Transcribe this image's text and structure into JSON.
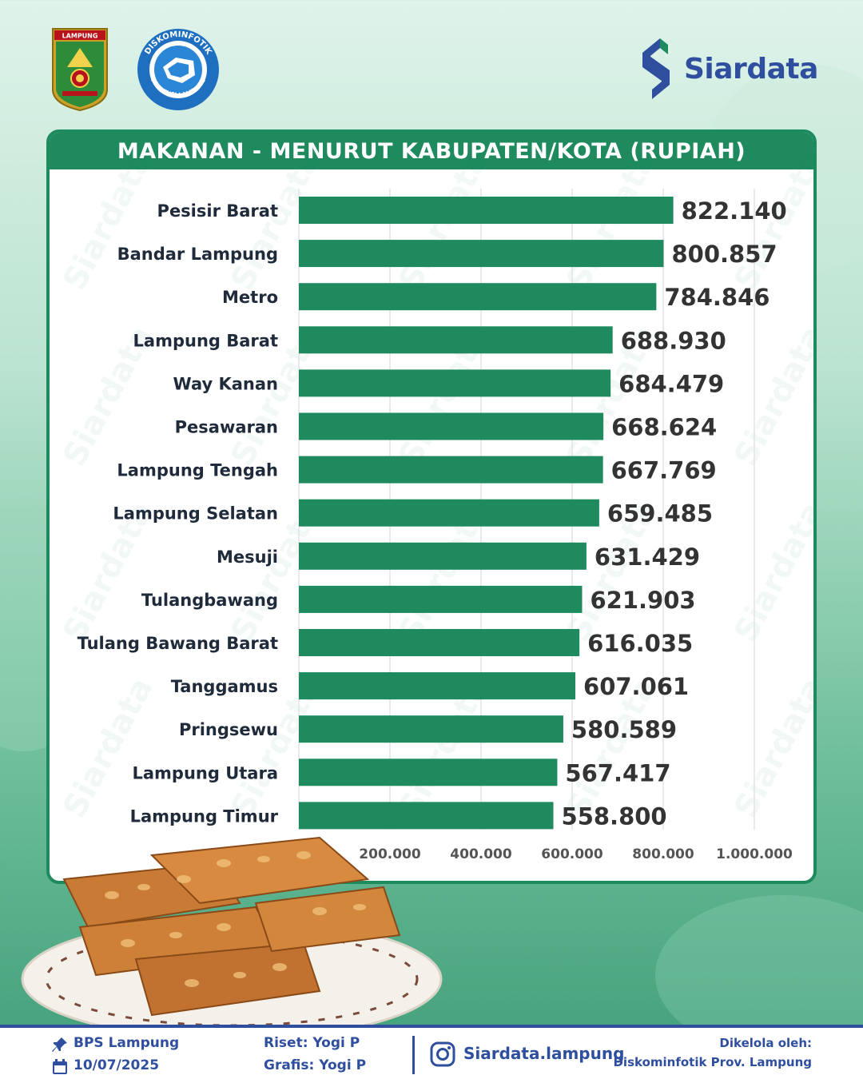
{
  "title": "MAKANAN - MENURUT KABUPATEN/KOTA (RUPIAH)",
  "brand": {
    "name": "Siardata"
  },
  "logos": {
    "lampung": "LAMPUNG",
    "diskominfotik_top": "DISKOMINFOTIK",
    "diskominfotik_bottom": "PROVINSI LAMPUNG",
    "watermark": "Siardata"
  },
  "chart_data": {
    "type": "bar",
    "orientation": "horizontal",
    "title": "MAKANAN - MENURUT KABUPATEN/KOTA (RUPIAH)",
    "categories": [
      "Pesisir Barat",
      "Bandar Lampung",
      "Metro",
      "Lampung Barat",
      "Way Kanan",
      "Pesawaran",
      "Lampung Tengah",
      "Lampung Selatan",
      "Mesuji",
      "Tulangbawang",
      "Tulang Bawang Barat",
      "Tanggamus",
      "Pringsewu",
      "Lampung Utara",
      "Lampung Timur"
    ],
    "values": [
      822140,
      800857,
      784846,
      688930,
      684479,
      668624,
      667769,
      659485,
      631429,
      621903,
      616035,
      607061,
      580589,
      567417,
      558800
    ],
    "value_labels": [
      "822.140",
      "800.857",
      "784.846",
      "688.930",
      "684.479",
      "668.624",
      "667.769",
      "659.485",
      "631.429",
      "621.903",
      "616.035",
      "607.061",
      "580.589",
      "567.417",
      "558.800"
    ],
    "xlim": [
      0,
      1000000
    ],
    "xticks": [
      200000,
      400000,
      600000,
      800000,
      1000000
    ],
    "xtick_labels": [
      "200.000",
      "400.000",
      "600.000",
      "800.000",
      "1.000.000"
    ],
    "grid": true,
    "bar_color": "#1e8a5e"
  },
  "footer": {
    "source": "BPS Lampung",
    "date": "10/07/2025",
    "riset": "Riset: Yogi P",
    "grafis": "Grafis: Yogi P",
    "instagram": "Siardata.lampung",
    "managed_label": "Dikelola oleh:",
    "managed_by": "Diskominfotik Prov. Lampung"
  },
  "colors": {
    "primary_green": "#1e8a5e",
    "brand_blue": "#2f4f9e"
  }
}
